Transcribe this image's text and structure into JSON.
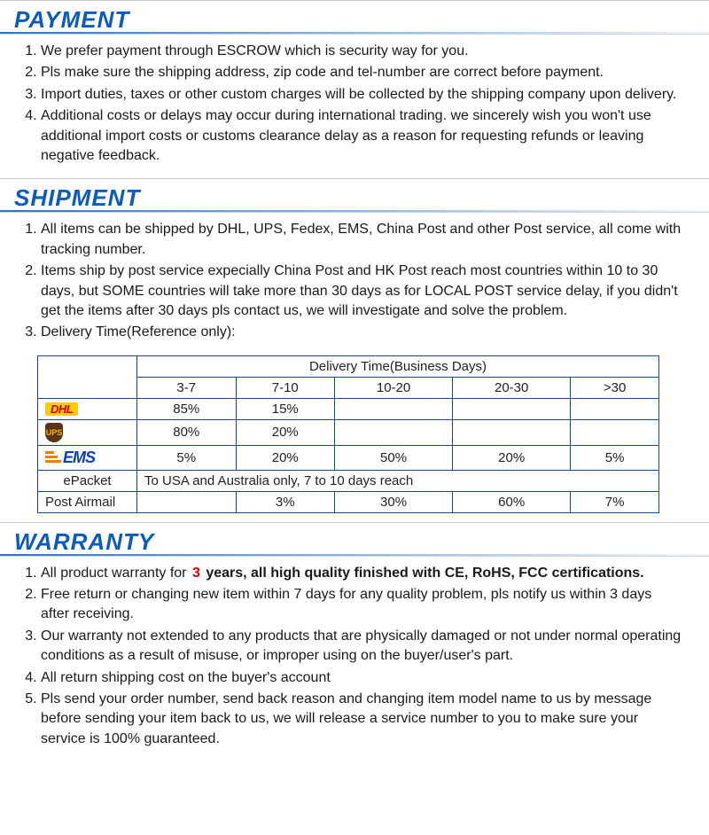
{
  "sections": {
    "payment": {
      "title": "PAYMENT",
      "items": [
        "We prefer payment through ESCROW which is security way for you.",
        "Pls make sure the shipping address, zip code and tel-number are correct before payment.",
        "Import duties, taxes or other custom charges will be collected by the shipping company upon delivery.",
        "Additional costs or delays may occur during international trading. we sincerely wish you won't use additional import costs or customs clearance delay as a reason for requesting refunds or leaving negative feedback."
      ]
    },
    "shipment": {
      "title": "SHIPMENT",
      "items": [
        "All items can be shipped by DHL, UPS, Fedex, EMS, China Post and other Post service, all come with tracking number.",
        "Items ship by post service expecially China Post and HK Post reach most countries within 10 to 30 days, but SOME countries will take more than 30 days as for LOCAL POST service delay, if you didn't get the items after 30 days pls contact us, we will investigate and solve the problem.",
        "Delivery Time(Reference only):"
      ],
      "table": {
        "header_span": "Delivery Time(Business Days)",
        "columns": [
          "3-7",
          "7-10",
          "10-20",
          "20-30",
          ">30"
        ],
        "rows": [
          {
            "carrier": "DHL",
            "cells": [
              "85%",
              "15%",
              "",
              "",
              ""
            ]
          },
          {
            "carrier": "UPS",
            "cells": [
              "80%",
              "20%",
              "",
              "",
              ""
            ]
          },
          {
            "carrier": "EMS",
            "cells": [
              "5%",
              "20%",
              "50%",
              "20%",
              "5%"
            ]
          },
          {
            "carrier": "ePacket",
            "note": "To USA and Australia only, 7 to 10 days reach"
          },
          {
            "carrier": "Post Airmail",
            "cells": [
              "",
              "3%",
              "30%",
              "60%",
              "7%"
            ]
          }
        ]
      }
    },
    "warranty": {
      "title": "WARRANTY",
      "items_html": [
        {
          "pre": "All product warranty for",
          "red": "3",
          "post": " years, all high quality finished with CE, RoHS, FCC certifications.",
          "bold": true
        },
        {
          "text": "Free return or changing new item within 7 days for any quality problem, pls notify us within 3 days after receiving."
        },
        {
          "text": "Our warranty not extended to any products that are physically damaged or not under normal operating conditions as a result of misuse, or improper using on the buyer/user's part."
        },
        {
          "text": "All return shipping cost on the buyer's account"
        },
        {
          "text": "Pls send your order number, send back reason and changing item model name to us by message before sending your item back to us, we will release a service number to you to make sure your service is 100% guaranteed."
        }
      ]
    }
  },
  "style": {
    "header_color": "#0b5bbf",
    "header_fontsize": 26,
    "body_fontsize": 16,
    "table_border_color": "#174a8a",
    "accent_red": "#d40000",
    "dhl_bg": "#ffcc00",
    "dhl_fg": "#d00000",
    "ups_bg": "#5a3512",
    "ups_fg": "#f7b500",
    "ems_fg": "#0b3fbf",
    "ems_stripe": "#ff7a00",
    "background": "#ffffff"
  }
}
